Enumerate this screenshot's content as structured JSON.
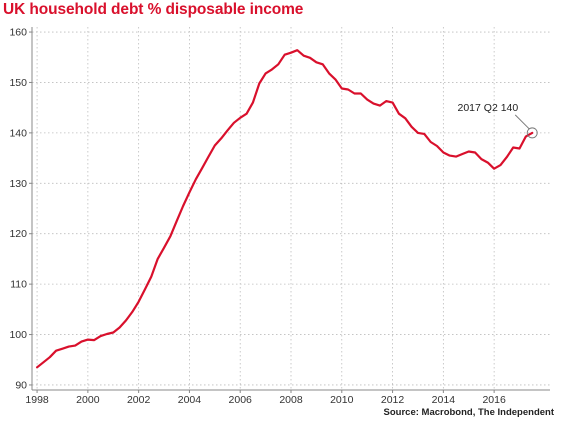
{
  "chart_data": {
    "type": "line",
    "title": "UK household debt % disposable income",
    "source": "Source: Macrobond, The Independent",
    "xlabel": "",
    "ylabel": "",
    "xlim": [
      1997.8,
      2018.2
    ],
    "ylim": [
      89,
      161
    ],
    "yticks": [
      90,
      100,
      110,
      120,
      130,
      140,
      150,
      160
    ],
    "xticks": [
      1998,
      2000,
      2002,
      2004,
      2006,
      2008,
      2010,
      2012,
      2014,
      2016
    ],
    "grid": true,
    "line_color": "#d9102c",
    "annotation": {
      "text": "2017 Q2 140",
      "x": 2017.5,
      "y": 140
    },
    "series": [
      {
        "x": [
          1998,
          1998.25,
          1998.5,
          1998.75,
          1999,
          1999.25,
          1999.5,
          1999.75,
          2000,
          2000.25,
          2000.5,
          2000.75,
          2001,
          2001.25,
          2001.5,
          2001.75,
          2002,
          2002.25,
          2002.5,
          2002.75,
          2003,
          2003.25,
          2003.5,
          2003.75,
          2004,
          2004.25,
          2004.5,
          2004.75,
          2005,
          2005.25,
          2005.5,
          2005.75,
          2006,
          2006.25,
          2006.5,
          2006.75,
          2007,
          2007.25,
          2007.5,
          2007.75,
          2008,
          2008.25,
          2008.5,
          2008.75,
          2009,
          2009.25,
          2009.5,
          2009.75,
          2010,
          2010.25,
          2010.5,
          2010.75,
          2011,
          2011.25,
          2011.5,
          2011.75,
          2012,
          2012.25,
          2012.5,
          2012.75,
          2013,
          2013.25,
          2013.5,
          2013.75,
          2014,
          2014.25,
          2014.5,
          2014.75,
          2015,
          2015.25,
          2015.5,
          2015.75,
          2016,
          2016.25,
          2016.5,
          2016.75,
          2017,
          2017.25,
          2017.5
        ],
        "values": [
          93.5,
          94.5,
          95.5,
          96.8,
          97.2,
          97.6,
          97.8,
          98.6,
          99,
          98.9,
          99.7,
          100.1,
          100.4,
          101.4,
          102.8,
          104.5,
          106.5,
          109,
          111.5,
          115,
          117.2,
          119.5,
          122.5,
          125.5,
          128.2,
          130.8,
          133,
          135.3,
          137.5,
          138.9,
          140.5,
          142,
          143,
          143.8,
          146,
          149.8,
          151.8,
          152.6,
          153.6,
          155.5,
          155.9,
          156.4,
          155.3,
          154.9,
          154,
          153.6,
          151.8,
          150.6,
          148.8,
          148.6,
          147.8,
          147.8,
          146.6,
          145.8,
          145.4,
          146.3,
          146,
          143.8,
          142.9,
          141.2,
          140,
          139.8,
          138.2,
          137.4,
          136.1,
          135.5,
          135.3,
          135.8,
          136.3,
          136.1,
          134.8,
          134.1,
          132.9,
          133.6,
          135.2,
          137.1,
          136.9,
          139.3,
          140
        ]
      }
    ]
  }
}
